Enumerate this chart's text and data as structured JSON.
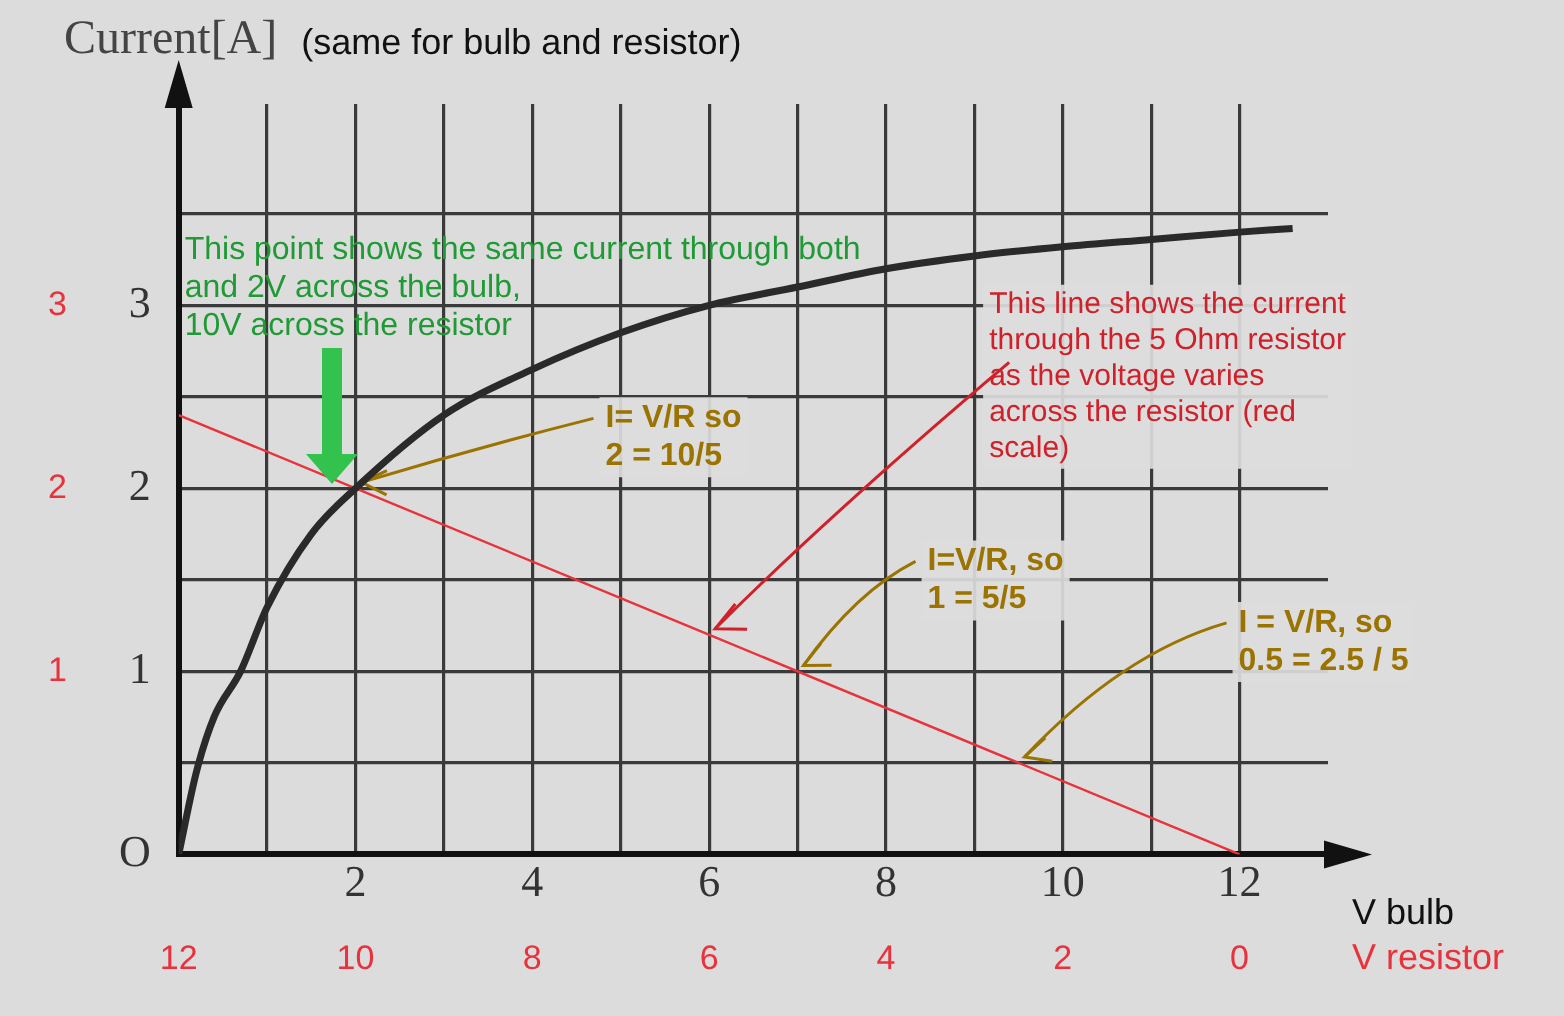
{
  "chart_data": {
    "type": "line",
    "ylabel": "Current[A]",
    "xlabel": "V bulb",
    "x2label": "V resistor",
    "series": [
      {
        "color": "#2a2a2a",
        "x": [
          0,
          0.2,
          0.4,
          0.7,
          1,
          1.5,
          2,
          3,
          4,
          5,
          6,
          7,
          8,
          9,
          10,
          11,
          12,
          12.6
        ],
        "values": [
          0,
          0.45,
          0.75,
          1.0,
          1.35,
          1.75,
          2.0,
          2.4,
          2.65,
          2.85,
          3.0,
          3.1,
          3.2,
          3.27,
          3.32,
          3.36,
          3.4,
          3.42
        ]
      },
      {
        "color": "#e8323c",
        "axis": "y2",
        "x": [
          0,
          12
        ],
        "values": [
          2.4,
          0
        ]
      }
    ],
    "xlim": [
      0,
      13
    ],
    "xticks": [
      {
        "value": 0,
        "label": null
      },
      {
        "value": 1,
        "label": null
      },
      2,
      {
        "value": 3,
        "label": null
      },
      4,
      {
        "value": 5,
        "label": null
      },
      6,
      {
        "value": 7,
        "label": null
      },
      8,
      {
        "value": 9,
        "label": null
      },
      10,
      {
        "value": 11,
        "label": null
      },
      12
    ],
    "x2lim": [
      12,
      -1
    ],
    "x2ticks": [
      12,
      10,
      8,
      6,
      4,
      2,
      0
    ],
    "ylim": [
      0,
      4.1
    ],
    "yticks": [
      {
        "value": 0,
        "label": "O"
      },
      {
        "value": 0.5,
        "label": null
      },
      1,
      {
        "value": 1.5,
        "label": null
      },
      2,
      {
        "value": 2.5,
        "label": null
      },
      3,
      {
        "value": 3.5,
        "label": null
      }
    ],
    "y2lim": [
      0,
      4.1
    ],
    "y2ticks": [
      1,
      2,
      3
    ],
    "grid": true,
    "legend": false,
    "marker": "none",
    "line_style": "solid",
    "annotations": [
      "(same for bulb and resistor)",
      "This point shows the same current through both\nand 2V across the bulb,\n10V across the resistor",
      {
        "text": "I= V/R so\n2 = 10/5",
        "x": 2,
        "y": 2
      },
      {
        "text": "This line shows the current\nthrough the 5 Ohm resistor\nas the voltage varies\nacross the resistor (red\nscale)",
        "x": 6,
        "y": 1.2
      },
      {
        "text": "I=V/R, so\n1 = 5/5",
        "x": 7,
        "y": 1
      },
      {
        "text": "I = V/R, so\n0.5 = 2.5 / 5",
        "x": 9.5,
        "y": 0.5
      }
    ]
  }
}
